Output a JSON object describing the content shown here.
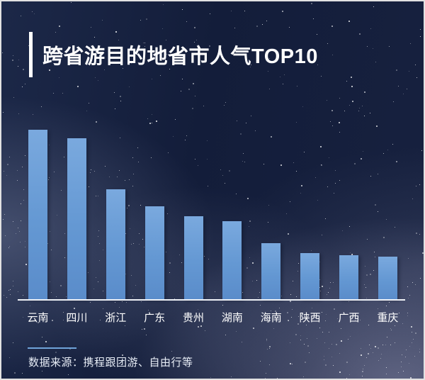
{
  "header": {
    "title": "跨省游目的地省市人气TOP10"
  },
  "chart_data": {
    "type": "bar",
    "title": "跨省游目的地省市人气TOP10",
    "categories": [
      "云南",
      "四川",
      "浙江",
      "广东",
      "贵州",
      "湖南",
      "海南",
      "陕西",
      "广西",
      "重庆"
    ],
    "values": [
      100,
      95,
      65,
      55,
      49,
      46,
      33,
      27,
      26,
      25
    ],
    "xlabel": "",
    "ylabel": "",
    "ylim": [
      0,
      100
    ],
    "grid": false,
    "legend": false,
    "value_axis_visible": false,
    "bar_color_top": "#7aa9de",
    "bar_color_bottom": "#5a8cca"
  },
  "footer": {
    "source": "数据来源：携程跟团游、自由行等"
  },
  "colors": {
    "background": "#131d3a",
    "title_color": "#ffffff",
    "axis_line": "#eef1f6",
    "accent_line": "#6fa3d9",
    "border": "#e2e2e2"
  }
}
